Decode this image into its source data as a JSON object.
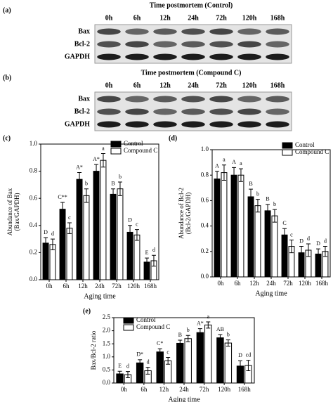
{
  "blots": [
    {
      "panel": "(a)",
      "title": "Time postmortem  (Control)",
      "lanes": [
        "0h",
        "6h",
        "12h",
        "24h",
        "72h",
        "120h",
        "168h"
      ],
      "rows": [
        "Bax",
        "Bcl-2",
        "GAPDH"
      ]
    },
    {
      "panel": "(b)",
      "title": "Time postmortem  (Compound C)",
      "lanes": [
        "0h",
        "6h",
        "12h",
        "24h",
        "72h",
        "120h",
        "168h"
      ],
      "rows": [
        "Bax",
        "Bcl-2",
        "GAPDH"
      ]
    }
  ],
  "chart_data": [
    {
      "type": "bar",
      "panel": "(c)",
      "xlabel": "Aging time",
      "ylabel": [
        "Abundance of Bax",
        "(Bax/GAPDH)"
      ],
      "categories": [
        "0h",
        "6h",
        "12h",
        "24h",
        "72h",
        "120h",
        "168h"
      ],
      "ylim": [
        0,
        1
      ],
      "yticks": [
        {
          "value": 0,
          "label": "0.0"
        },
        0.2,
        0.4,
        0.6,
        0.8,
        {
          "value": 1,
          "label": "1.0"
        }
      ],
      "series": [
        {
          "name": "Control",
          "color": "#000000",
          "values": [
            0.27,
            0.52,
            0.74,
            0.8,
            0.63,
            0.35,
            0.13
          ],
          "errors": [
            0.04,
            0.05,
            0.05,
            0.05,
            0.04,
            0.05,
            0.03
          ],
          "labels": [
            "D",
            "C**",
            "A*",
            "A*",
            "B",
            "D",
            "E"
          ]
        },
        {
          "name": "Compound C",
          "color": "#ffffff",
          "values": [
            0.26,
            0.38,
            0.62,
            0.88,
            0.67,
            0.33,
            0.14
          ],
          "errors": [
            0.04,
            0.04,
            0.05,
            0.05,
            0.05,
            0.04,
            0.04
          ],
          "labels": [
            "d",
            "c",
            "b",
            "a",
            "b",
            "c",
            "d"
          ]
        }
      ]
    },
    {
      "type": "bar",
      "panel": "(d)",
      "xlabel": "Aging time",
      "ylabel": [
        "Abundance of Bcl-2",
        "(Bcl-2/GAPDH)"
      ],
      "categories": [
        "0h",
        "6h",
        "12h",
        "24h",
        "72h",
        "120h",
        "168h"
      ],
      "ylim": [
        0,
        1
      ],
      "yticks": [
        {
          "value": 0,
          "label": "0.0"
        },
        0.2,
        0.4,
        0.6,
        0.8,
        {
          "value": 1,
          "label": "1.0"
        }
      ],
      "series": [
        {
          "name": "Control",
          "color": "#000000",
          "values": [
            0.77,
            0.8,
            0.63,
            0.52,
            0.33,
            0.19,
            0.18
          ],
          "errors": [
            0.06,
            0.06,
            0.06,
            0.05,
            0.05,
            0.05,
            0.04
          ],
          "labels": [
            "A",
            "A",
            "B",
            "B",
            "C",
            "D",
            "D"
          ]
        },
        {
          "name": "Compound C",
          "color": "#ffffff",
          "values": [
            0.82,
            0.8,
            0.56,
            0.48,
            0.24,
            0.21,
            0.2
          ],
          "errors": [
            0.06,
            0.05,
            0.05,
            0.05,
            0.05,
            0.05,
            0.04
          ],
          "labels": [
            "a",
            "a",
            "b",
            "b",
            "c",
            "d",
            "d"
          ]
        }
      ]
    },
    {
      "type": "bar",
      "panel": "(e)",
      "xlabel": "Aging time",
      "ylabel": [
        "Bax/Bcl-2 ratio"
      ],
      "categories": [
        "0h",
        "6h",
        "12h",
        "24h",
        "72h",
        "120h",
        "168h"
      ],
      "ylim": [
        0,
        2.5
      ],
      "yticks": [
        {
          "value": 0,
          "label": "0.0"
        },
        0.5,
        {
          "value": 1,
          "label": "1.0"
        },
        1.5,
        {
          "value": 2,
          "label": "2.0"
        },
        2.5
      ],
      "series": [
        {
          "name": "Control",
          "color": "#000000",
          "values": [
            0.35,
            0.77,
            1.19,
            1.52,
            1.93,
            1.73,
            0.65
          ],
          "errors": [
            0.1,
            0.12,
            0.12,
            0.12,
            0.15,
            0.12,
            0.2
          ],
          "labels": [
            "E",
            "D*",
            "C*",
            "B",
            "A*",
            "AB",
            "D"
          ]
        },
        {
          "name": "Compound C",
          "color": "#ffffff",
          "values": [
            0.32,
            0.47,
            0.85,
            1.7,
            2.22,
            1.53,
            0.67
          ],
          "errors": [
            0.12,
            0.13,
            0.13,
            0.12,
            0.12,
            0.12,
            0.2
          ],
          "labels": [
            "d",
            "d",
            "c",
            "b",
            "a",
            "b",
            "cd"
          ]
        }
      ]
    }
  ]
}
